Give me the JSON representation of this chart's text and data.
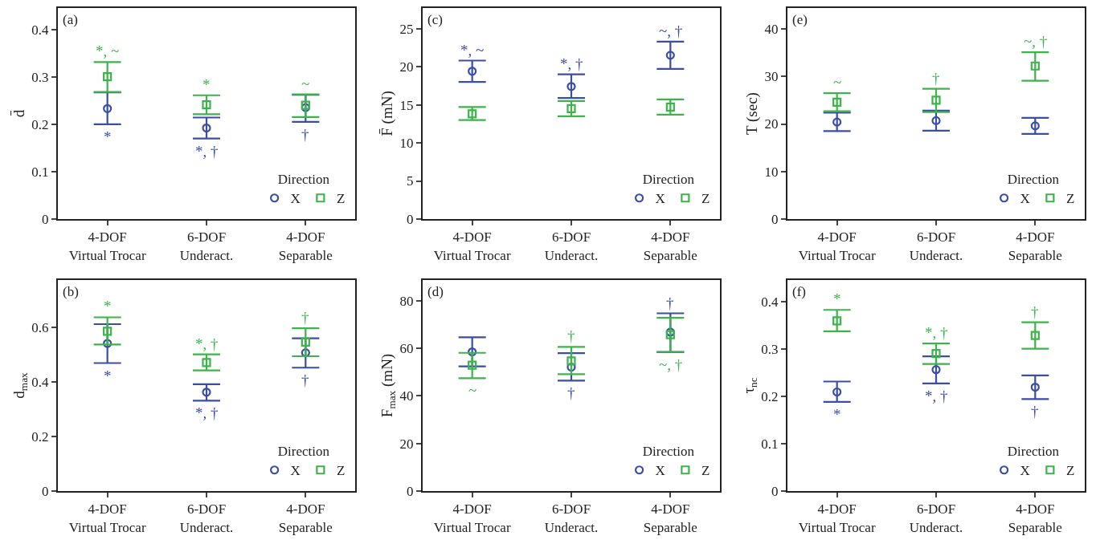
{
  "chart_data": [
    {
      "type": "scatter",
      "ylabel": "d̄",
      "categories": [
        "4-DOF\nVirtual Trocar",
        "6-DOF\nUnderact.",
        "4-DOF\nSeparable"
      ],
      "ylim": [
        0,
        0.445
      ],
      "yticks": [
        0,
        0.1,
        0.2,
        0.3,
        0.4
      ],
      "grid": false,
      "legend": "bottom right",
      "legend_title": "Direction",
      "series": [
        {
          "name": "X",
          "color": "#3b4ea6",
          "marker": "circle",
          "values": [
            0.233,
            0.192,
            0.235
          ],
          "errors": [
            [
              0.2,
              0.267
            ],
            [
              0.17,
              0.214
            ],
            [
              0.205,
              0.262
            ]
          ],
          "value_labels": [
            "*",
            "*, †",
            "†"
          ]
        },
        {
          "name": "Z",
          "color": "#3cb44a",
          "marker": "square",
          "values": [
            0.3,
            0.241,
            0.24
          ],
          "errors": [
            [
              0.268,
              0.331
            ],
            [
              0.221,
              0.261
            ],
            [
              0.215,
              0.263
            ]
          ],
          "value_labels": [
            "*, ~",
            "*",
            "~"
          ]
        }
      ],
      "annotations": [
        "(a)"
      ]
    },
    {
      "type": "scatter",
      "ylabel": "F̄ (mN)",
      "categories": [
        "4-DOF\nVirtual Trocar",
        "6-DOF\nUnderact.",
        "4-DOF\nSeparable"
      ],
      "ylim": [
        0,
        27.7
      ],
      "yticks": [
        0,
        5,
        10,
        15,
        20,
        25
      ],
      "grid": false,
      "legend": "bottom right",
      "legend_title": "Direction",
      "series": [
        {
          "name": "X",
          "color": "#3b4ea6",
          "marker": "circle",
          "values": [
            19.4,
            17.4,
            21.5
          ],
          "errors": [
            [
              18.0,
              20.8
            ],
            [
              15.9,
              19.0
            ],
            [
              19.7,
              23.3
            ]
          ],
          "value_labels": [
            "*, ~",
            "*, †",
            "~, †"
          ]
        },
        {
          "name": "Z",
          "color": "#3cb44a",
          "marker": "square",
          "values": [
            13.8,
            14.5,
            14.7
          ],
          "errors": [
            [
              13.0,
              14.7
            ],
            [
              13.5,
              15.5
            ],
            [
              13.7,
              15.7
            ]
          ]
        }
      ],
      "annotations": [
        "(c)"
      ]
    },
    {
      "type": "scatter",
      "ylabel": "T (sec)",
      "categories": [
        "4-DOF\nVirtual Trocar",
        "6-DOF\nUnderact.",
        "4-DOF\nSeparable"
      ],
      "ylim": [
        0,
        44.4
      ],
      "yticks": [
        0,
        10,
        20,
        30,
        40
      ],
      "grid": false,
      "legend": "bottom right",
      "legend_title": "Direction",
      "series": [
        {
          "name": "X",
          "color": "#3b4ea6",
          "marker": "circle",
          "values": [
            20.4,
            20.7,
            19.6
          ],
          "errors": [
            [
              18.5,
              22.4
            ],
            [
              18.6,
              22.8
            ],
            [
              17.9,
              21.3
            ]
          ]
        },
        {
          "name": "Z",
          "color": "#3cb44a",
          "marker": "square",
          "values": [
            24.6,
            25.0,
            32.2
          ],
          "errors": [
            [
              22.7,
              26.5
            ],
            [
              22.5,
              27.4
            ],
            [
              29.1,
              35.1
            ]
          ],
          "value_labels": [
            "~",
            "†",
            "~, †"
          ]
        }
      ],
      "annotations": [
        "(e)"
      ]
    },
    {
      "type": "scatter",
      "ylabel": "d$_{max}$",
      "categories": [
        "4-DOF\nVirtual Trocar",
        "6-DOF\nUnderact.",
        "4-DOF\nSeparable"
      ],
      "ylim": [
        0,
        0.775
      ],
      "yticks": [
        0,
        0.2,
        0.4,
        0.6
      ],
      "grid": false,
      "legend": "bottom right",
      "legend_title": "Direction",
      "series": [
        {
          "name": "X",
          "color": "#3b4ea6",
          "marker": "circle",
          "values": [
            0.542,
            0.363,
            0.508
          ],
          "errors": [
            [
              0.47,
              0.613
            ],
            [
              0.332,
              0.392
            ],
            [
              0.453,
              0.561
            ]
          ],
          "value_labels": [
            "*",
            "*, †",
            "†"
          ]
        },
        {
          "name": "Z",
          "color": "#3cb44a",
          "marker": "square",
          "values": [
            0.587,
            0.472,
            0.547
          ],
          "errors": [
            [
              0.538,
              0.638
            ],
            [
              0.443,
              0.502
            ],
            [
              0.495,
              0.598
            ]
          ],
          "value_labels": [
            "*",
            "*, †",
            "†"
          ]
        }
      ],
      "annotations": [
        "(b)"
      ]
    },
    {
      "type": "scatter",
      "ylabel": "F$_{max}$ (mN)",
      "categories": [
        "4-DOF\nVirtual Trocar",
        "6-DOF\nUnderact.",
        "4-DOF\nSeparable"
      ],
      "ylim": [
        0,
        88.7
      ],
      "yticks": [
        0,
        20,
        40,
        60,
        80
      ],
      "grid": false,
      "legend": "bottom right",
      "legend_title": "Direction",
      "series": [
        {
          "name": "X",
          "color": "#3b4ea6",
          "marker": "circle",
          "values": [
            58.5,
            52.1,
            66.8
          ],
          "errors": [
            [
              52.4,
              64.6
            ],
            [
              46.4,
              58.0
            ],
            [
              58.4,
              74.7
            ]
          ],
          "value_labels": [
            null,
            "†",
            "†"
          ]
        },
        {
          "name": "Z",
          "color": "#3cb44a",
          "marker": "square",
          "values": [
            52.9,
            54.7,
            65.7
          ],
          "errors": [
            [
              47.4,
              58.1
            ],
            [
              49.1,
              60.6
            ],
            [
              58.5,
              72.8
            ]
          ],
          "value_labels": [
            "~",
            "†",
            "~, †"
          ]
        }
      ],
      "annotations": [
        "(d)"
      ]
    },
    {
      "type": "scatter",
      "ylabel": "τ$_{nc}$",
      "categories": [
        "4-DOF\nVirtual Trocar",
        "6-DOF\nUnderact.",
        "4-DOF\nSeparable"
      ],
      "ylim": [
        0,
        0.445
      ],
      "yticks": [
        0,
        0.1,
        0.2,
        0.3,
        0.4
      ],
      "grid": false,
      "legend": "bottom right",
      "legend_title": "Direction",
      "series": [
        {
          "name": "X",
          "color": "#3b4ea6",
          "marker": "circle",
          "values": [
            0.209,
            0.256,
            0.219
          ],
          "errors": [
            [
              0.188,
              0.231
            ],
            [
              0.227,
              0.284
            ],
            [
              0.194,
              0.244
            ]
          ],
          "value_labels": [
            "*",
            "*, †",
            "†"
          ]
        },
        {
          "name": "Z",
          "color": "#3cb44a",
          "marker": "square",
          "values": [
            0.359,
            0.29,
            0.328
          ],
          "errors": [
            [
              0.337,
              0.382
            ],
            [
              0.268,
              0.311
            ],
            [
              0.3,
              0.356
            ]
          ],
          "value_labels": [
            "*",
            "*, †",
            "†"
          ]
        }
      ],
      "annotations": [
        "(f)"
      ]
    }
  ]
}
